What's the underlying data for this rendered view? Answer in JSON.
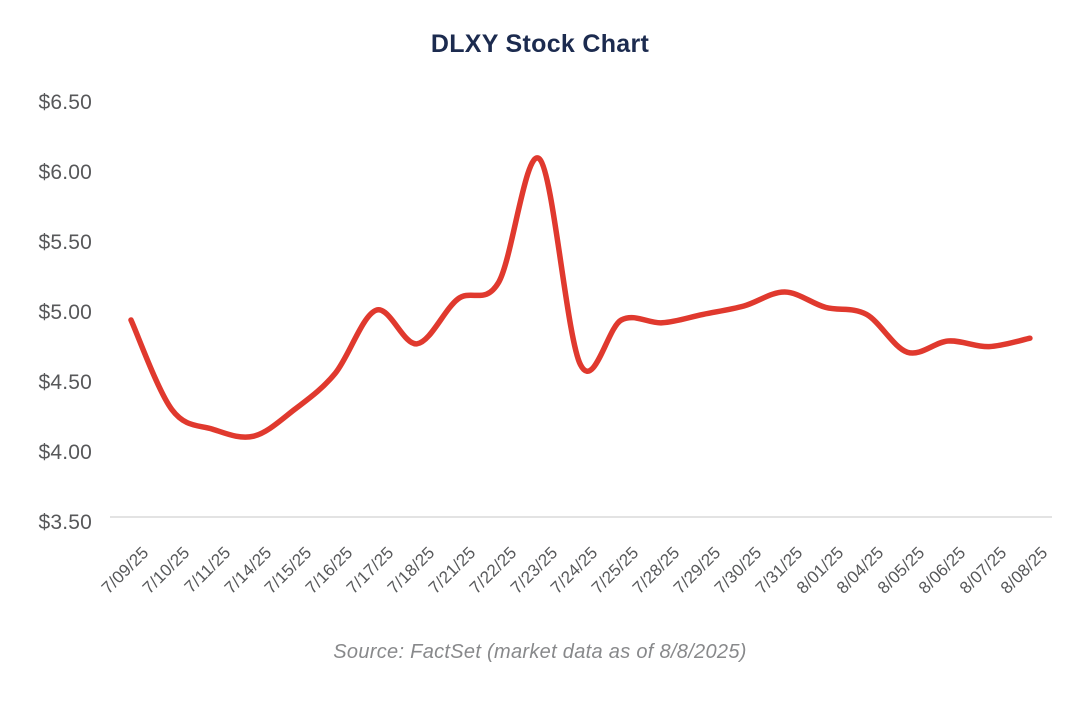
{
  "header": {
    "title": "DLXY Stock Chart"
  },
  "footer": {
    "source_note": "Source: FactSet (market data as of 8/8/2025)"
  },
  "chart_data": {
    "type": "line",
    "title": "DLXY Stock Chart",
    "x": [
      "7/09/25",
      "7/10/25",
      "7/11/25",
      "7/14/25",
      "7/15/25",
      "7/16/25",
      "7/17/25",
      "7/18/25",
      "7/21/25",
      "7/22/25",
      "7/23/25",
      "7/24/25",
      "7/25/25",
      "7/28/25",
      "7/29/25",
      "7/30/25",
      "7/31/25",
      "8/01/25",
      "8/04/25",
      "8/05/25",
      "8/06/25",
      "8/07/25",
      "8/08/25"
    ],
    "series": [
      {
        "name": "DLXY",
        "values": [
          4.95,
          4.31,
          4.17,
          4.12,
          4.31,
          4.57,
          5.02,
          4.78,
          5.1,
          5.22,
          6.1,
          4.63,
          4.95,
          4.93,
          4.99,
          5.05,
          5.15,
          5.04,
          4.99,
          4.72,
          4.8,
          4.76,
          4.82
        ]
      }
    ],
    "xlabel": "",
    "ylabel": "",
    "y_tick_labels": [
      "$6.50",
      "$6.00",
      "$5.50",
      "$5.00",
      "$4.50",
      "$4.00",
      "$3.50"
    ],
    "y_tick_values": [
      6.5,
      6.0,
      5.5,
      5.0,
      4.5,
      4.0,
      3.5
    ],
    "ylim": [
      3.5,
      6.5
    ],
    "grid": false,
    "legend": false,
    "smoothing": "spline",
    "annotations": [],
    "source": "Source: FactSet (market data as of 8/8/2025)",
    "colors": {
      "line": "#e0392e",
      "title": "#1c2b4f",
      "axis_text": "#57585a",
      "source_text": "#88898b",
      "baseline": "#e3e3e3",
      "background": "#ffffff"
    }
  }
}
